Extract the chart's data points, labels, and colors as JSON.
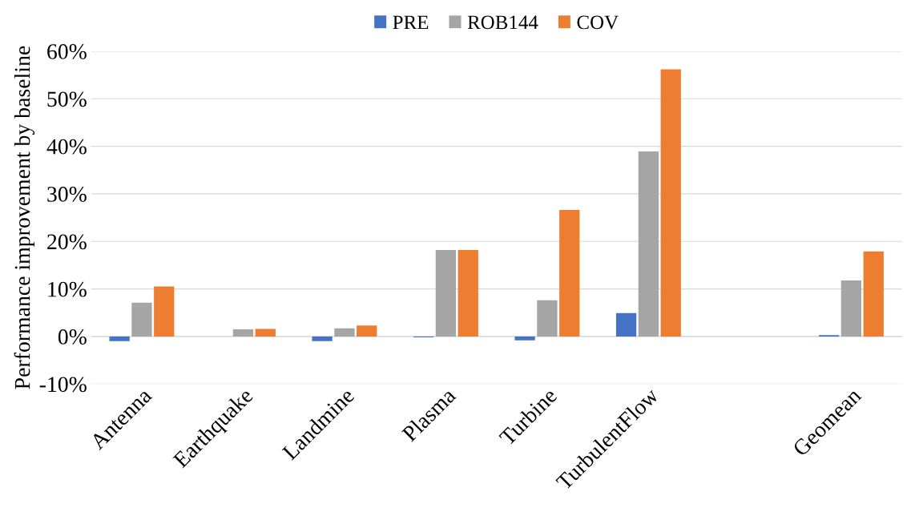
{
  "chart_data": {
    "type": "bar",
    "ylabel": "Performance improvement by baseline",
    "categories": [
      "Antenna",
      "Earthquake",
      "Landmine",
      "Plasma",
      "Turbine",
      "TurbulentFlow",
      null,
      "Geomean"
    ],
    "series": [
      {
        "name": "PRE",
        "color": "#4472c4",
        "values": [
          -1.0,
          0.0,
          -1.0,
          -0.2,
          -0.8,
          4.9,
          null,
          0.3
        ]
      },
      {
        "name": "ROB144",
        "color": "#a5a5a5",
        "values": [
          7.1,
          1.5,
          1.7,
          18.2,
          7.6,
          38.9,
          null,
          11.8
        ]
      },
      {
        "name": "COV",
        "color": "#ed7d31",
        "values": [
          10.5,
          1.6,
          2.3,
          18.2,
          26.6,
          56.2,
          null,
          17.9
        ]
      }
    ],
    "ylim": [
      -10,
      60
    ],
    "yticks": [
      {
        "value": -10,
        "label": "-10%"
      },
      {
        "value": 0,
        "label": "0%"
      },
      {
        "value": 10,
        "label": "10%"
      },
      {
        "value": 20,
        "label": "20%"
      },
      {
        "value": 30,
        "label": "30%"
      },
      {
        "value": 40,
        "label": "40%"
      },
      {
        "value": 50,
        "label": "50%"
      },
      {
        "value": 60,
        "label": "60%"
      }
    ],
    "grid": "y",
    "legend": "top"
  }
}
